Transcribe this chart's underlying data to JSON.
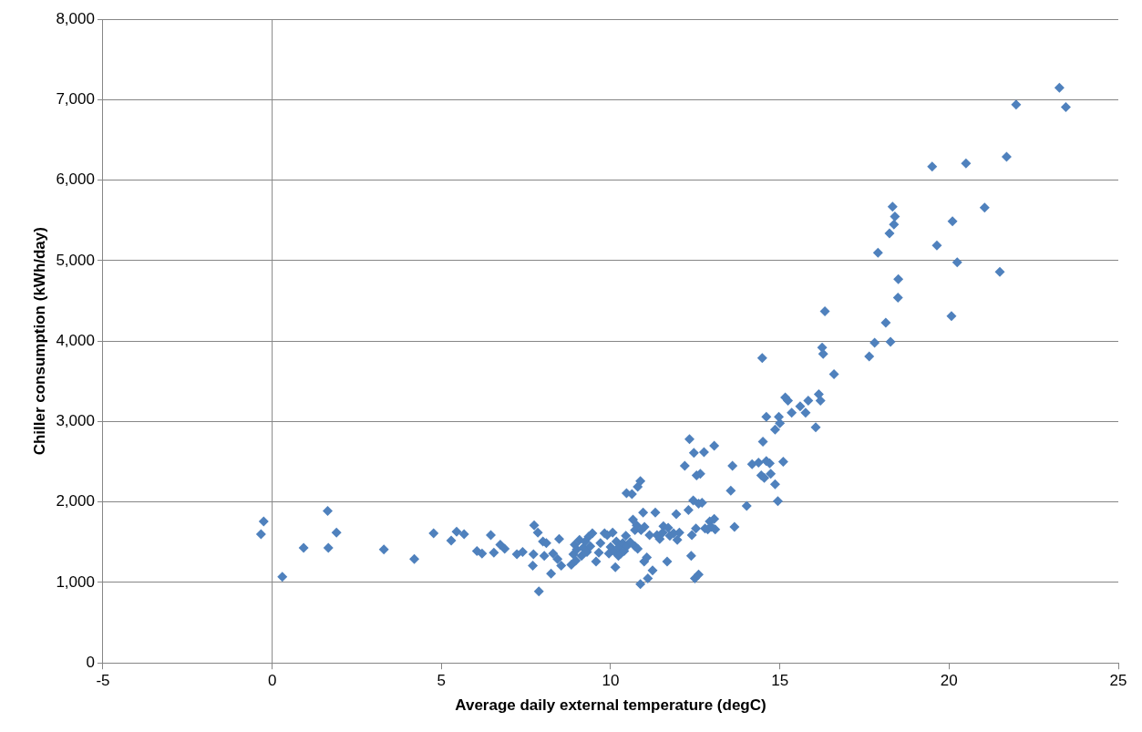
{
  "chart_data": {
    "type": "scatter",
    "xlabel": "Average daily external temperature (degC)",
    "ylabel": "Chiller consumption (kWh/day)",
    "xlim": [
      -5,
      25
    ],
    "xticks": [
      -5,
      0,
      5,
      10,
      15,
      20,
      25
    ],
    "ylim": [
      0,
      8000
    ],
    "yticks": [
      {
        "value": 0,
        "label": "0"
      },
      {
        "value": 1000,
        "label": "1,000"
      },
      {
        "value": 2000,
        "label": "2,000"
      },
      {
        "value": 3000,
        "label": "3,000"
      },
      {
        "value": 4000,
        "label": "4,000"
      },
      {
        "value": 5000,
        "label": "5,000"
      },
      {
        "value": 6000,
        "label": "6,000"
      },
      {
        "value": 7000,
        "label": "7,000"
      },
      {
        "value": 8000,
        "label": "8,000"
      }
    ],
    "grid": "y",
    "legend": false,
    "marker": "diamond",
    "ref_lines": [
      {
        "axis": "x",
        "value": 0,
        "color": "#868686"
      }
    ],
    "series": [
      {
        "color": "#4f81bd",
        "x": [
          -0.33,
          -0.25,
          0.3,
          0.93,
          1.64,
          1.66,
          1.9,
          3.3,
          4.2,
          4.77,
          5.29,
          5.45,
          5.67,
          6.05,
          6.2,
          6.46,
          6.55,
          6.74,
          6.87,
          7.23,
          7.4,
          7.7,
          7.74,
          7.72,
          7.85,
          7.88,
          8.0,
          8.04,
          8.1,
          8.24,
          8.3,
          8.43,
          8.48,
          8.54,
          8.84,
          8.9,
          8.94,
          8.97,
          9.0,
          9.08,
          9.14,
          9.19,
          9.25,
          9.3,
          9.35,
          9.4,
          9.46,
          9.57,
          9.65,
          9.7,
          9.82,
          9.9,
          9.95,
          10.0,
          10.06,
          10.1,
          10.14,
          10.17,
          10.23,
          10.25,
          10.3,
          10.36,
          10.4,
          10.45,
          10.47,
          10.5,
          10.58,
          10.63,
          10.66,
          10.72,
          10.72,
          10.77,
          10.8,
          10.8,
          10.88,
          10.88,
          10.9,
          10.96,
          10.99,
          11.0,
          11.07,
          11.1,
          11.15,
          11.24,
          11.32,
          11.37,
          11.45,
          11.54,
          11.56,
          11.67,
          11.7,
          11.75,
          11.86,
          11.94,
          11.97,
          12.03,
          12.19,
          12.3,
          12.33,
          12.38,
          12.4,
          12.44,
          12.46,
          12.49,
          12.52,
          12.54,
          12.6,
          12.6,
          12.65,
          12.7,
          12.76,
          12.79,
          12.87,
          12.93,
          12.98,
          13.06,
          13.06,
          13.09,
          13.55,
          13.6,
          13.66,
          14.02,
          14.18,
          14.37,
          14.45,
          14.48,
          14.5,
          14.54,
          14.6,
          14.6,
          14.7,
          14.73,
          14.86,
          14.86,
          14.94,
          14.97,
          15.0,
          15.1,
          15.16,
          15.24,
          15.35,
          15.6,
          15.76,
          15.84,
          16.06,
          16.15,
          16.2,
          16.25,
          16.28,
          16.33,
          16.6,
          17.64,
          17.8,
          17.9,
          18.13,
          18.24,
          18.27,
          18.33,
          18.37,
          18.4,
          18.49,
          18.5,
          19.5,
          19.64,
          20.07,
          20.1,
          20.24,
          20.5,
          21.05,
          21.5,
          21.7,
          21.98,
          23.26,
          23.45
        ],
        "values": [
          1600,
          1760,
          1070,
          1430,
          1890,
          1430,
          1620,
          1410,
          1290,
          1610,
          1520,
          1630,
          1600,
          1390,
          1360,
          1590,
          1370,
          1470,
          1420,
          1350,
          1380,
          1210,
          1710,
          1350,
          1620,
          890,
          1510,
          1330,
          1490,
          1110,
          1360,
          1290,
          1540,
          1210,
          1220,
          1350,
          1470,
          1270,
          1410,
          1530,
          1330,
          1430,
          1510,
          1380,
          1570,
          1450,
          1610,
          1260,
          1370,
          1490,
          1610,
          1590,
          1360,
          1440,
          1620,
          1390,
          1190,
          1510,
          1330,
          1440,
          1360,
          1490,
          1390,
          1580,
          2110,
          1460,
          1500,
          2100,
          1780,
          1650,
          1450,
          1710,
          1420,
          2190,
          980,
          2260,
          1650,
          1870,
          1260,
          1690,
          1310,
          1050,
          1590,
          1150,
          1870,
          1590,
          1540,
          1620,
          1700,
          1260,
          1680,
          1580,
          1610,
          1850,
          1530,
          1620,
          2450,
          1900,
          2780,
          1330,
          1590,
          2020,
          2610,
          1050,
          1670,
          2330,
          1100,
          1980,
          2350,
          1990,
          2620,
          1670,
          1660,
          1760,
          1690,
          2700,
          1790,
          1660,
          2140,
          2450,
          1690,
          1950,
          2470,
          2490,
          2330,
          3790,
          2750,
          2300,
          3060,
          2510,
          2480,
          2350,
          2220,
          2900,
          2010,
          3060,
          2980,
          2500,
          3300,
          3260,
          3110,
          3190,
          3110,
          3260,
          2930,
          3340,
          3260,
          3920,
          3840,
          4370,
          3590,
          3810,
          3980,
          5100,
          4230,
          5340,
          3990,
          5670,
          5450,
          5550,
          4540,
          4770,
          6170,
          5190,
          4310,
          5490,
          4980,
          6210,
          5660,
          4860,
          6290,
          6940,
          7150,
          6910
        ]
      }
    ]
  }
}
